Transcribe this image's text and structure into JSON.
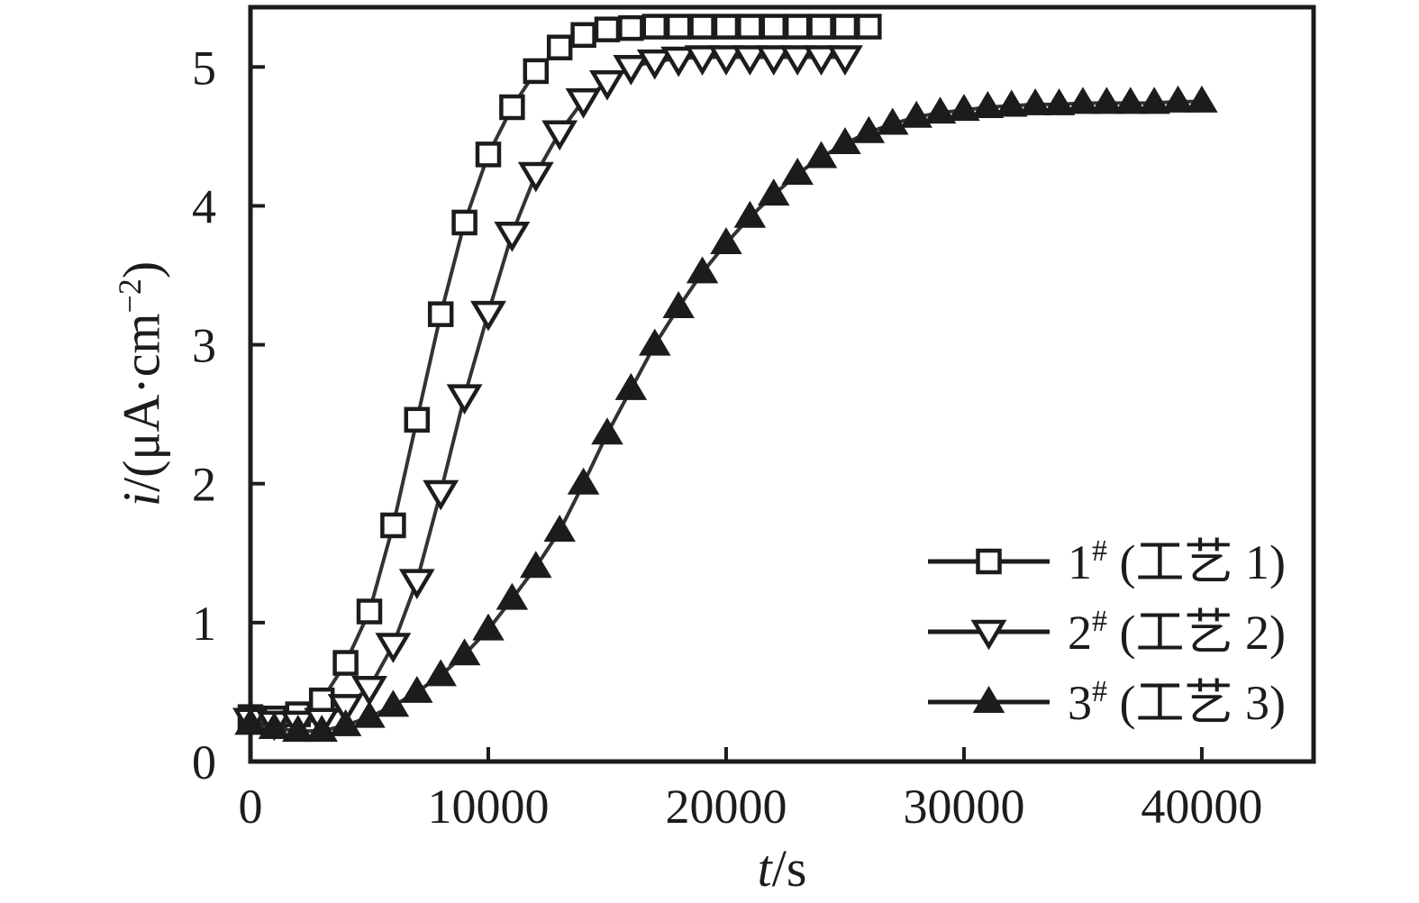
{
  "figure": {
    "background": "#ffffff",
    "ink_color": "#1c1c1c",
    "curve_color": "#333333",
    "marker_fill_open": "#ffffff"
  },
  "chart_data": {
    "type": "line",
    "title": "",
    "xlabel": {
      "var": "t",
      "rest": "/s"
    },
    "ylabel": {
      "var": "i",
      "pre": "/(μA·cm",
      "sup": "−2",
      "post": ")"
    },
    "xlim": [
      0,
      44700
    ],
    "ylim": [
      0,
      5.43
    ],
    "x_ticks": [
      0,
      10000,
      20000,
      30000,
      40000
    ],
    "y_ticks": [
      0,
      1,
      2,
      3,
      4,
      5
    ],
    "grid": false,
    "legend_position": "lower-right",
    "series": [
      {
        "name": "1# (工艺 1)",
        "legend_num": "1",
        "legend_sup": "#",
        "legend_rest": " (工艺 1)",
        "marker": "open-square",
        "points": [
          [
            0,
            0.32
          ],
          [
            1000,
            0.31
          ],
          [
            2000,
            0.34
          ],
          [
            3000,
            0.44
          ],
          [
            4000,
            0.71
          ],
          [
            5000,
            1.08
          ],
          [
            6000,
            1.7
          ],
          [
            7000,
            2.46
          ],
          [
            8000,
            3.22
          ],
          [
            9000,
            3.88
          ],
          [
            10000,
            4.37
          ],
          [
            11000,
            4.71
          ],
          [
            12000,
            4.97
          ],
          [
            13000,
            5.14
          ],
          [
            14000,
            5.23
          ],
          [
            15000,
            5.27
          ],
          [
            16000,
            5.28
          ],
          [
            17000,
            5.29
          ],
          [
            18000,
            5.29
          ],
          [
            19000,
            5.29
          ],
          [
            20000,
            5.29
          ],
          [
            21000,
            5.29
          ],
          [
            22000,
            5.29
          ],
          [
            23000,
            5.29
          ],
          [
            24000,
            5.29
          ],
          [
            25000,
            5.29
          ],
          [
            26000,
            5.29
          ]
        ]
      },
      {
        "name": "2# (工艺 2)",
        "legend_num": "2",
        "legend_sup": "#",
        "legend_rest": " (工艺 2)",
        "marker": "open-triangle-down",
        "points": [
          [
            0,
            0.3
          ],
          [
            1000,
            0.28
          ],
          [
            2000,
            0.28
          ],
          [
            3000,
            0.3
          ],
          [
            4000,
            0.4
          ],
          [
            5000,
            0.53
          ],
          [
            6000,
            0.84
          ],
          [
            7000,
            1.3
          ],
          [
            8000,
            1.94
          ],
          [
            9000,
            2.63
          ],
          [
            10000,
            3.23
          ],
          [
            11000,
            3.8
          ],
          [
            12000,
            4.23
          ],
          [
            13000,
            4.53
          ],
          [
            14000,
            4.76
          ],
          [
            15000,
            4.89
          ],
          [
            16000,
            5.0
          ],
          [
            17000,
            5.04
          ],
          [
            18000,
            5.06
          ],
          [
            19000,
            5.07
          ],
          [
            20000,
            5.07
          ],
          [
            21000,
            5.07
          ],
          [
            22000,
            5.07
          ],
          [
            23000,
            5.07
          ],
          [
            24000,
            5.07
          ],
          [
            25000,
            5.07
          ]
        ]
      },
      {
        "name": "3# (工艺 3)",
        "legend_num": "3",
        "legend_sup": "#",
        "legend_rest": " (工艺 3)",
        "marker": "filled-triangle-up",
        "points": [
          [
            0,
            0.27
          ],
          [
            1000,
            0.24
          ],
          [
            2000,
            0.22
          ],
          [
            3000,
            0.22
          ],
          [
            4000,
            0.26
          ],
          [
            5000,
            0.32
          ],
          [
            6000,
            0.4
          ],
          [
            7000,
            0.5
          ],
          [
            8000,
            0.62
          ],
          [
            9000,
            0.77
          ],
          [
            10000,
            0.95
          ],
          [
            11000,
            1.17
          ],
          [
            12000,
            1.4
          ],
          [
            13000,
            1.66
          ],
          [
            14000,
            2.0
          ],
          [
            15000,
            2.36
          ],
          [
            16000,
            2.68
          ],
          [
            17000,
            3.0
          ],
          [
            18000,
            3.27
          ],
          [
            19000,
            3.52
          ],
          [
            20000,
            3.73
          ],
          [
            21000,
            3.92
          ],
          [
            22000,
            4.08
          ],
          [
            23000,
            4.23
          ],
          [
            24000,
            4.35
          ],
          [
            25000,
            4.45
          ],
          [
            26000,
            4.53
          ],
          [
            27000,
            4.59
          ],
          [
            28000,
            4.64
          ],
          [
            29000,
            4.67
          ],
          [
            30000,
            4.69
          ],
          [
            31000,
            4.71
          ],
          [
            32000,
            4.72
          ],
          [
            33000,
            4.73
          ],
          [
            34000,
            4.73
          ],
          [
            35000,
            4.74
          ],
          [
            36000,
            4.74
          ],
          [
            37000,
            4.74
          ],
          [
            38000,
            4.74
          ],
          [
            39000,
            4.75
          ],
          [
            40000,
            4.75
          ]
        ]
      }
    ]
  }
}
